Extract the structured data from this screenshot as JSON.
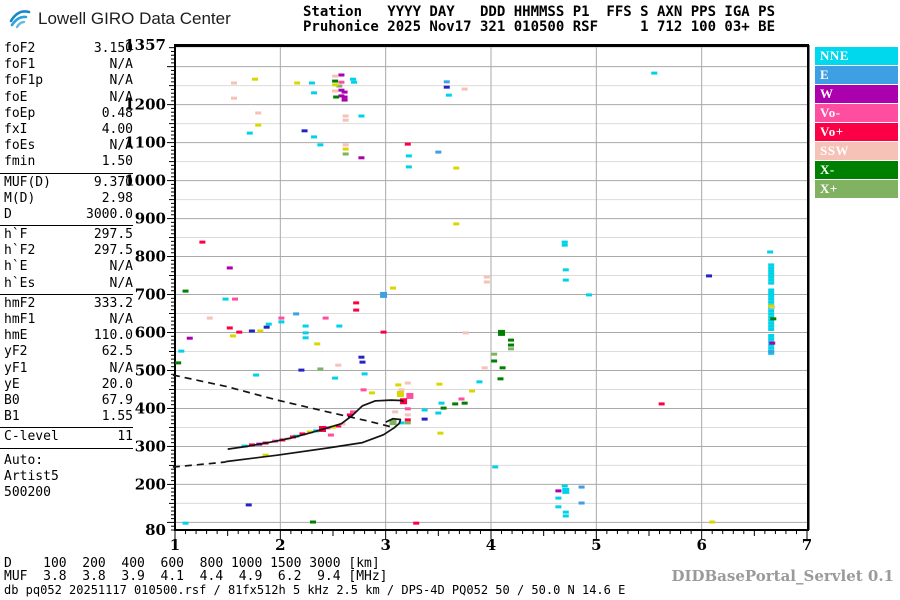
{
  "header": {
    "brand": "Lowell GIRO Data Center",
    "station_line1": "Station   YYYY DAY   DDD HHMMSS P1  FFS S AXN PPS IGA PS",
    "station_line2": "Pruhonice 2025 Nov17 321 010500 RSF     1 712 100 03+ BE"
  },
  "params": {
    "groups": [
      [
        [
          "foF2",
          "3.150"
        ],
        [
          "foF1",
          "N/A"
        ],
        [
          "foF1p",
          "N/A"
        ],
        [
          "foE",
          "N/A"
        ],
        [
          "foEp",
          "0.48"
        ],
        [
          "fxI",
          "4.00"
        ],
        [
          "foEs",
          "N/A"
        ],
        [
          "fmin",
          "1.50"
        ]
      ],
      [
        [
          "MUF(D)",
          "9.370"
        ],
        [
          "M(D)",
          "2.98"
        ],
        [
          "D",
          "3000.0"
        ]
      ],
      [
        [
          "h`F",
          "297.5"
        ],
        [
          "h`F2",
          "297.5"
        ],
        [
          "h`E",
          "N/A"
        ],
        [
          "h`Es",
          "N/A"
        ]
      ],
      [
        [
          "hmF2",
          "333.2"
        ],
        [
          "hmF1",
          "N/A"
        ],
        [
          "hmE",
          "110.0"
        ],
        [
          "yF2",
          "62.5"
        ],
        [
          "yF1",
          "N/A"
        ],
        [
          "yE",
          "20.0"
        ],
        [
          "B0",
          "67.9"
        ],
        [
          "B1",
          "1.55"
        ]
      ],
      [
        [
          "C-level",
          "11"
        ]
      ]
    ],
    "auto_lines": [
      "Auto:",
      "Artist5",
      "500200"
    ]
  },
  "legend": [
    {
      "label": "NNE",
      "color": "#00d8ee"
    },
    {
      "label": "E",
      "color": "#3f9fe4"
    },
    {
      "label": "W",
      "color": "#ab00ad"
    },
    {
      "label": "Vo-",
      "color": "#ff4da0"
    },
    {
      "label": "Vo+",
      "color": "#fb0044"
    },
    {
      "label": "SSW",
      "color": "#f6c1b6"
    },
    {
      "label": "X-",
      "color": "#008000"
    },
    {
      "label": "X+",
      "color": "#80b261"
    }
  ],
  "footer": {
    "d_row": "D    100  200  400  600  800 1000 1500 3000 [km]",
    "muf_row": "MUF  3.8  3.8  3.9  4.1  4.4  4.9  6.2  9.4 [MHz]",
    "db_line": "db pq052 20251117 010500.rsf / 81fx512h 5 kHz 2.5 km / DPS-4D PQ052 50 / 50.0 N 14.6 E",
    "servlet": "DIDBasePortal_Servlet 0.1"
  },
  "chart_data": {
    "type": "scatter",
    "title": "Pruhonice ionogram 2025 Nov17 321 010500",
    "xlabel": "[MHz]",
    "ylabel": "[km]",
    "xlim": [
      1,
      7
    ],
    "ylim": [
      80,
      1357
    ],
    "x_ticks": [
      1,
      2,
      3,
      4,
      5,
      6,
      7
    ],
    "y_tick_labels": [
      1357,
      1200,
      1100,
      1000,
      900,
      800,
      700,
      600,
      500,
      400,
      300,
      200,
      80
    ],
    "grid": {
      "major_km": 100,
      "minor_km": 50,
      "vertical_mhz": [
        2,
        3,
        4,
        5,
        6
      ]
    },
    "series": [
      {
        "name": "NNE",
        "color": "#00d2e8",
        "points": [
          [
            2.3,
            1257
          ],
          [
            2.32,
            1231
          ],
          [
            2.69,
            1267
          ],
          [
            2.7,
            1259
          ],
          [
            3.6,
            1225
          ],
          [
            1.71,
            1125
          ],
          [
            2.32,
            1115
          ],
          [
            2.38,
            1094
          ],
          [
            2.77,
            1170
          ],
          [
            3.22,
            1065
          ],
          [
            3.22,
            1036
          ],
          [
            5.55,
            1283
          ],
          [
            4.7,
            838
          ],
          [
            4.7,
            830
          ],
          [
            4.71,
            765
          ],
          [
            4.71,
            738
          ],
          [
            4.93,
            699
          ],
          [
            1.48,
            688
          ],
          [
            1.89,
            622
          ],
          [
            2.01,
            628
          ],
          [
            2.24,
            617
          ],
          [
            2.24,
            599
          ],
          [
            2.24,
            586
          ],
          [
            2.56,
            617
          ],
          [
            2.8,
            491
          ],
          [
            1.06,
            551
          ],
          [
            1.77,
            488
          ],
          [
            2.52,
            480
          ],
          [
            3.89,
            470
          ],
          [
            4.04,
            246
          ],
          [
            4.7,
            196
          ],
          [
            4.71,
            183,
            2
          ],
          [
            4.64,
            164
          ],
          [
            4.64,
            141
          ],
          [
            4.71,
            127
          ],
          [
            4.71,
            117
          ],
          [
            1.1,
            98
          ],
          [
            3.53,
            414
          ],
          [
            3.37,
            396
          ],
          [
            3.5,
            388
          ],
          [
            3.15,
            362
          ],
          [
            2.15,
            327
          ],
          [
            1.66,
            301
          ],
          [
            2.34,
            341
          ],
          [
            6.65,
            812
          ],
          [
            6.66,
            778
          ],
          [
            6.66,
            770
          ],
          [
            6.66,
            762
          ],
          [
            6.66,
            754
          ],
          [
            6.66,
            746
          ],
          [
            6.66,
            738
          ],
          [
            6.66,
            730
          ],
          [
            6.66,
            712
          ],
          [
            6.66,
            704
          ],
          [
            6.66,
            696
          ],
          [
            6.66,
            688
          ],
          [
            6.66,
            680
          ],
          [
            6.66,
            672
          ],
          [
            6.66,
            664
          ],
          [
            6.66,
            656
          ],
          [
            6.66,
            648
          ],
          [
            6.66,
            640
          ],
          [
            6.66,
            632
          ],
          [
            6.66,
            624
          ],
          [
            6.66,
            616
          ],
          [
            6.66,
            608
          ],
          [
            6.66,
            592
          ],
          [
            6.66,
            584
          ],
          [
            6.66,
            576
          ],
          [
            6.66,
            568
          ],
          [
            6.66,
            560
          ],
          [
            6.66,
            552
          ],
          [
            6.66,
            545
          ]
        ]
      },
      {
        "name": "E",
        "color": "#3f9fe4",
        "points": [
          [
            3.58,
            1260
          ],
          [
            3.5,
            1075
          ],
          [
            2.98,
            699,
            2
          ],
          [
            2.15,
            649
          ],
          [
            4.86,
            193
          ],
          [
            4.86,
            151
          ],
          [
            6.66,
            549
          ]
        ]
      },
      {
        "name": "W",
        "color": "#ab00ad",
        "points": [
          [
            2.58,
            1278
          ],
          [
            2.58,
            1238
          ],
          [
            2.58,
            1223
          ],
          [
            2.61,
            1233
          ],
          [
            2.61,
            1220
          ],
          [
            2.61,
            1212
          ],
          [
            2.77,
            1060
          ],
          [
            1.52,
            770
          ],
          [
            1.14,
            585
          ],
          [
            4.64,
            183
          ],
          [
            1.8,
            306
          ],
          [
            6.67,
            572
          ]
        ]
      },
      {
        "name": "Vo-",
        "color": "#ff4da0",
        "points": [
          [
            2.58,
            1259
          ],
          [
            2.01,
            638
          ],
          [
            2.43,
            638
          ],
          [
            1.57,
            688
          ],
          [
            2.79,
            449
          ],
          [
            3.23,
            433,
            2
          ],
          [
            3.21,
            399
          ],
          [
            3.72,
            425
          ],
          [
            1.95,
            314
          ],
          [
            2.45,
            349
          ],
          [
            2.69,
            391
          ],
          [
            2.48,
            330
          ]
        ]
      },
      {
        "name": "Vo+",
        "color": "#fb0044",
        "points": [
          [
            1.26,
            838
          ],
          [
            3.21,
            1096
          ],
          [
            2.72,
            678
          ],
          [
            2.72,
            659
          ],
          [
            1.52,
            612
          ],
          [
            1.61,
            601
          ],
          [
            2.98,
            601
          ],
          [
            5.62,
            412
          ],
          [
            3.29,
            98
          ],
          [
            1.73,
            304
          ],
          [
            1.86,
            309
          ],
          [
            2.02,
            317
          ],
          [
            2.12,
            325
          ],
          [
            2.21,
            333
          ],
          [
            2.4,
            346,
            2
          ],
          [
            2.55,
            354
          ],
          [
            2.66,
            383
          ],
          [
            3.17,
            419,
            2
          ],
          [
            3.21,
            370
          ]
        ]
      },
      {
        "name": "SSW",
        "color": "#f6c1b6",
        "points": [
          [
            1.56,
            1257
          ],
          [
            1.56,
            1217
          ],
          [
            2.52,
            1275
          ],
          [
            2.52,
            1236
          ],
          [
            1.79,
            1178
          ],
          [
            2.62,
            1170
          ],
          [
            2.62,
            1159
          ],
          [
            2.62,
            1094
          ],
          [
            3.75,
            1241
          ],
          [
            3.96,
            746
          ],
          [
            3.96,
            733
          ],
          [
            1.33,
            638
          ],
          [
            3.76,
            599
          ],
          [
            3.94,
            507
          ],
          [
            6.67,
            667
          ],
          [
            2.07,
            320
          ],
          [
            2.59,
            359
          ],
          [
            2.55,
            514
          ],
          [
            3.21,
            467
          ],
          [
            3.15,
            449
          ],
          [
            3.09,
            391
          ],
          [
            3.21,
            383
          ]
        ]
      },
      {
        "name": "X-",
        "color": "#008000",
        "points": [
          [
            2.52,
            1262
          ],
          [
            2.53,
            1220
          ],
          [
            4.1,
            599,
            2
          ],
          [
            4.19,
            580
          ],
          [
            4.19,
            567
          ],
          [
            4.03,
            525
          ],
          [
            4.11,
            507
          ],
          [
            1.1,
            709
          ],
          [
            1.03,
            520
          ],
          [
            3.66,
            412
          ],
          [
            3.75,
            414
          ],
          [
            3.55,
            401
          ],
          [
            4.09,
            478
          ],
          [
            6.68,
            636
          ],
          [
            2.31,
            101
          ]
        ]
      },
      {
        "name": "X+",
        "color": "#80b261",
        "points": [
          [
            2.56,
            1249
          ],
          [
            2.62,
            1070
          ],
          [
            4.19,
            557
          ],
          [
            4.03,
            543
          ],
          [
            2.38,
            504
          ],
          [
            3.07,
            364,
            2
          ],
          [
            3.21,
            362
          ]
        ]
      },
      {
        "name": "other-yellow",
        "color": "#d8d800",
        "points": [
          [
            1.76,
            1267
          ],
          [
            2.16,
            1257
          ],
          [
            2.52,
            1252
          ],
          [
            1.79,
            1146
          ],
          [
            2.62,
            1083
          ],
          [
            3.67,
            1033
          ],
          [
            3.67,
            886
          ],
          [
            3.07,
            717
          ],
          [
            1.81,
            604
          ],
          [
            1.55,
            591
          ],
          [
            2.35,
            570
          ],
          [
            1.86,
            277
          ],
          [
            2.28,
            338
          ],
          [
            2.5,
            351
          ],
          [
            2.87,
            441
          ],
          [
            3.51,
            464
          ],
          [
            3.14,
            438,
            2
          ],
          [
            3.12,
            462
          ],
          [
            3.52,
            335
          ],
          [
            3.82,
            446
          ],
          [
            6.66,
            670
          ],
          [
            6.1,
            101
          ]
        ]
      },
      {
        "name": "other-navy",
        "color": "#2424c4",
        "points": [
          [
            3.58,
            1246
          ],
          [
            2.23,
            1131
          ],
          [
            1.73,
            604
          ],
          [
            1.87,
            614
          ],
          [
            6.07,
            749
          ],
          [
            2.78,
            522
          ],
          [
            2.2,
            501
          ],
          [
            1.7,
            146
          ],
          [
            3.37,
            372
          ],
          [
            2.77,
            535
          ]
        ]
      }
    ],
    "traces": {
      "echo_trace_solid": [
        [
          1.5,
          293
        ],
        [
          1.7,
          301
        ],
        [
          1.9,
          311
        ],
        [
          2.1,
          322
        ],
        [
          2.3,
          337
        ],
        [
          2.45,
          349
        ],
        [
          2.58,
          360
        ],
        [
          2.68,
          381
        ],
        [
          2.78,
          407
        ],
        [
          2.9,
          420
        ],
        [
          3.05,
          422
        ],
        [
          3.15,
          421
        ],
        [
          3.17,
          418
        ]
      ],
      "descending_dashed": [
        [
          0.98,
          488
        ],
        [
          1.5,
          457
        ],
        [
          1.97,
          422
        ],
        [
          2.45,
          391
        ],
        [
          2.83,
          367
        ],
        [
          3.09,
          349
        ]
      ],
      "profile_dashed": [
        [
          0.98,
          246
        ],
        [
          1.22,
          252
        ],
        [
          1.48,
          259
        ]
      ],
      "profile_solid": [
        [
          1.48,
          260
        ],
        [
          1.97,
          277
        ],
        [
          2.45,
          296
        ],
        [
          2.78,
          310
        ],
        [
          2.98,
          331
        ],
        [
          3.08,
          349
        ],
        [
          3.13,
          361
        ],
        [
          3.14,
          371
        ],
        [
          3.07,
          373
        ],
        [
          3.0,
          364
        ]
      ]
    }
  }
}
